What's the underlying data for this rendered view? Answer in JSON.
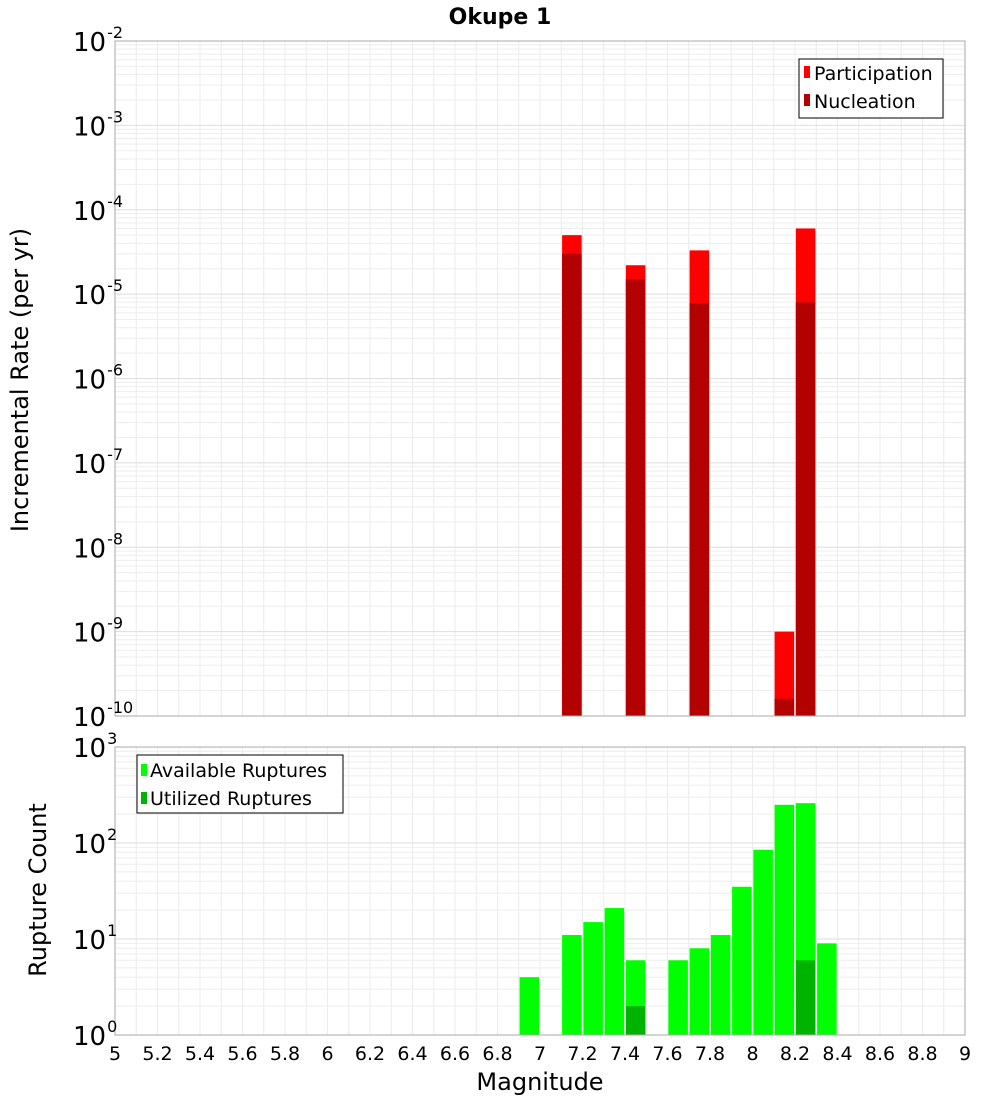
{
  "chart_data": [
    {
      "type": "bar",
      "title": "Okupe 1",
      "xlabel": "Magnitude",
      "ylabel": "Incremental Rate (per yr)",
      "yscale": "log",
      "xlim": [
        5,
        9
      ],
      "ylim_exp": [
        -10,
        -2
      ],
      "bin_width": 0.1,
      "grid": true,
      "legend_position": "top-right",
      "series": [
        {
          "name": "Participation",
          "color": "#ff0000",
          "x": [
            7.15,
            7.45,
            7.75,
            8.15,
            8.25
          ],
          "values": [
            5e-05,
            2.2e-05,
            3.3e-05,
            1e-09,
            6e-05
          ]
        },
        {
          "name": "Nucleation",
          "color": "#b30000",
          "x": [
            7.15,
            7.45,
            7.75,
            8.15,
            8.25
          ],
          "values": [
            3e-05,
            1.5e-05,
            7.8e-06,
            1.6e-10,
            8e-06
          ]
        }
      ]
    },
    {
      "type": "bar",
      "xlabel": "Magnitude",
      "ylabel": "Rupture Count",
      "yscale": "log",
      "xlim": [
        5,
        9
      ],
      "ylim_exp": [
        0,
        3
      ],
      "bin_width": 0.1,
      "grid": true,
      "legend_position": "top-left",
      "series": [
        {
          "name": "Available Ruptures",
          "color": "#00ff00",
          "x": [
            6.95,
            7.05,
            7.15,
            7.25,
            7.35,
            7.45,
            7.65,
            7.75,
            7.85,
            7.95,
            8.05,
            8.15,
            8.25,
            8.35
          ],
          "values": [
            4,
            1,
            11,
            15,
            21,
            6,
            6,
            8,
            11,
            35,
            85,
            250,
            260,
            9
          ]
        },
        {
          "name": "Utilized Ruptures",
          "color": "#00b300",
          "x": [
            7.15,
            7.45,
            7.75,
            8.15,
            8.25
          ],
          "values": [
            1,
            2,
            1,
            1,
            6
          ]
        }
      ]
    }
  ],
  "xticks": [
    "5",
    "5.2",
    "5.4",
    "5.6",
    "5.8",
    "6",
    "6.2",
    "6.4",
    "6.6",
    "6.8",
    "7",
    "7.2",
    "7.4",
    "7.6",
    "7.8",
    "8",
    "8.2",
    "8.4",
    "8.6",
    "8.8",
    "9"
  ]
}
